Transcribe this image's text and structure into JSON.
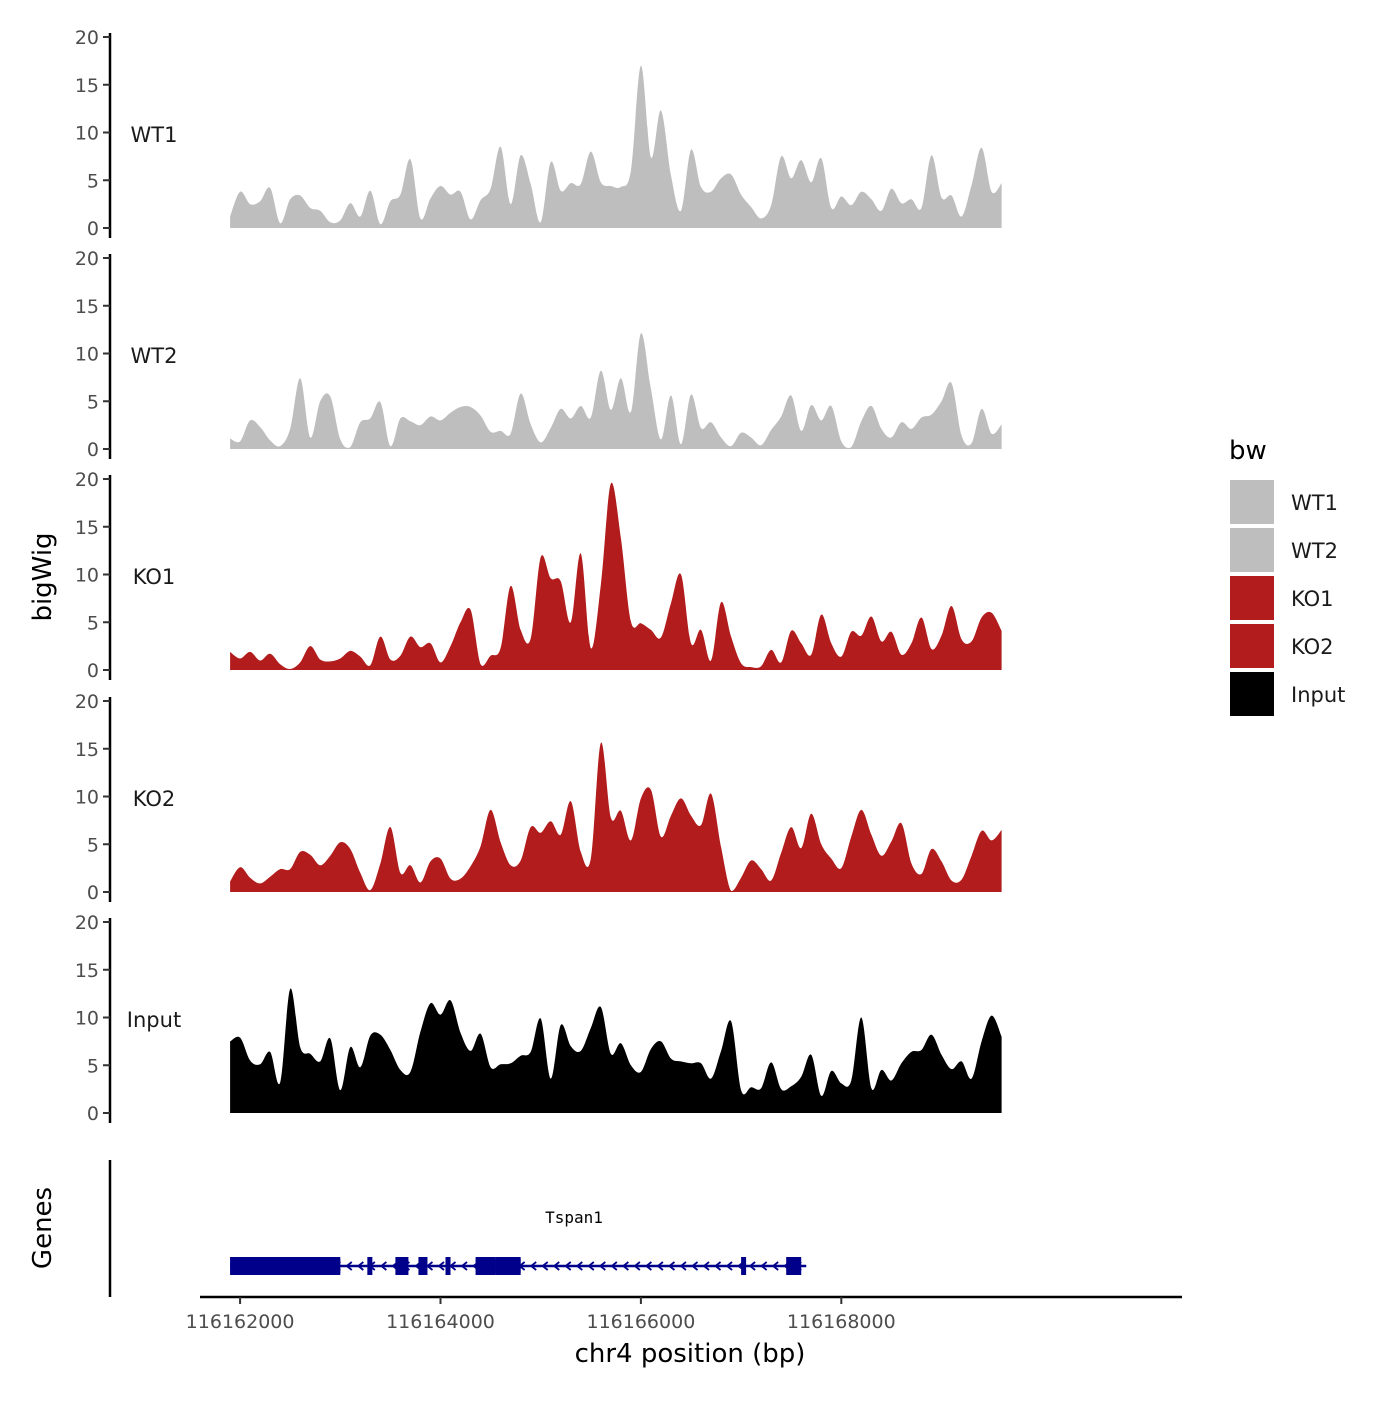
{
  "chart_data": {
    "type": "area",
    "region": "chr4:116161900-116169600",
    "xlabel": "chr4 position (bp)",
    "ylabel": "bigWig",
    "gene_panel_label": "Genes",
    "xlim": [
      116161600,
      116171400
    ],
    "x_ticks": [
      116162000,
      116164000,
      116166000,
      116168000
    ],
    "x_tick_labels": [
      "116162000",
      "116164000",
      "116166000",
      "116168000"
    ],
    "ylim": [
      0,
      20
    ],
    "y_ticks": [
      0,
      5,
      10,
      15,
      20
    ],
    "y_tick_labels": [
      "0",
      "5",
      "10",
      "15",
      "20"
    ],
    "legend": {
      "title": "bw",
      "position": "right",
      "entries": [
        {
          "label": "WT1",
          "color": "#bebebe"
        },
        {
          "label": "WT2",
          "color": "#bebebe"
        },
        {
          "label": "KO1",
          "color": "#b21c1c"
        },
        {
          "label": "KO2",
          "color": "#b21c1c"
        },
        {
          "label": "Input",
          "color": "#000000"
        }
      ]
    },
    "x": [
      116161900,
      116162000,
      116162100,
      116162200,
      116162300,
      116162400,
      116162500,
      116162600,
      116162700,
      116162800,
      116162900,
      116163000,
      116163100,
      116163200,
      116163300,
      116163400,
      116163500,
      116163600,
      116163700,
      116163800,
      116163900,
      116164000,
      116164100,
      116164200,
      116164300,
      116164400,
      116164500,
      116164600,
      116164700,
      116164800,
      116164900,
      116165000,
      116165100,
      116165200,
      116165300,
      116165400,
      116165500,
      116165600,
      116165700,
      116165800,
      116165900,
      116166000,
      116166100,
      116166200,
      116166300,
      116166400,
      116166500,
      116166600,
      116166700,
      116166800,
      116166900,
      116167000,
      116167100,
      116167200,
      116167300,
      116167400,
      116167500,
      116167600,
      116167700,
      116167800,
      116167900,
      116168000,
      116168100,
      116168200,
      116168300,
      116168400,
      116168500,
      116168600,
      116168700,
      116168800,
      116168900,
      116169000,
      116169100,
      116169200,
      116169300,
      116169400,
      116169500,
      116169600
    ],
    "series": [
      {
        "name": "WT1",
        "color": "#bebebe",
        "values": [
          1.2,
          3.8,
          2.5,
          2.8,
          4.2,
          0.5,
          3.0,
          3.4,
          2.1,
          1.8,
          0.6,
          0.8,
          2.6,
          1.2,
          3.9,
          0.4,
          2.8,
          3.5,
          7.2,
          1.0,
          3.1,
          4.4,
          3.5,
          3.8,
          0.9,
          2.9,
          4.1,
          8.5,
          2.5,
          7.6,
          4.6,
          0.6,
          6.9,
          3.9,
          4.7,
          4.6,
          8.0,
          4.8,
          4.4,
          4.3,
          6.0,
          17.0,
          7.4,
          12.3,
          5.5,
          1.8,
          8.2,
          4.3,
          3.8,
          5.2,
          5.6,
          3.5,
          2.2,
          1.0,
          2.4,
          7.5,
          5.2,
          7.1,
          4.8,
          7.3,
          2.1,
          3.3,
          2.4,
          3.8,
          3.0,
          1.8,
          4.1,
          2.6,
          3.0,
          2.1,
          7.6,
          3.2,
          3.4,
          1.2,
          4.5,
          8.4,
          3.8,
          4.7
        ]
      },
      {
        "name": "WT2",
        "color": "#bebebe",
        "values": [
          1.1,
          0.8,
          3.0,
          2.3,
          0.9,
          0.3,
          2.1,
          7.4,
          1.2,
          5.0,
          5.5,
          1.0,
          0.2,
          2.8,
          3.2,
          4.9,
          0.3,
          3.2,
          2.9,
          2.5,
          3.4,
          3.0,
          3.8,
          4.4,
          4.4,
          3.5,
          1.8,
          1.9,
          1.6,
          5.8,
          2.6,
          0.7,
          2.2,
          4.2,
          3.2,
          4.5,
          3.3,
          8.2,
          4.1,
          7.4,
          3.9,
          12.1,
          6.3,
          1.0,
          5.6,
          0.5,
          5.7,
          2.2,
          2.8,
          1.2,
          0.3,
          1.7,
          1.2,
          0.4,
          2.0,
          3.4,
          5.6,
          1.9,
          4.6,
          3.0,
          4.5,
          0.8,
          0.2,
          2.9,
          4.5,
          2.1,
          1.2,
          2.8,
          2.1,
          3.3,
          3.6,
          5.0,
          6.9,
          1.4,
          0.6,
          4.2,
          1.6,
          2.6
        ]
      },
      {
        "name": "KO1",
        "color": "#b21c1c",
        "values": [
          1.9,
          1.2,
          1.9,
          1.0,
          1.7,
          0.6,
          0.1,
          0.8,
          2.5,
          1.1,
          0.9,
          1.2,
          2.0,
          1.4,
          0.5,
          3.5,
          1.1,
          1.5,
          3.5,
          2.4,
          2.8,
          0.8,
          2.5,
          5.0,
          6.3,
          0.6,
          1.5,
          2.3,
          8.8,
          4.2,
          3.3,
          11.8,
          9.6,
          9.3,
          5.0,
          12.2,
          2.3,
          8.9,
          19.5,
          13.8,
          5.1,
          4.9,
          4.2,
          3.4,
          7.0,
          10.0,
          2.8,
          4.2,
          1.0,
          7.1,
          3.5,
          0.7,
          0.3,
          0.4,
          2.1,
          0.8,
          4.1,
          2.8,
          1.6,
          5.8,
          2.8,
          1.4,
          4.0,
          3.6,
          5.6,
          3.0,
          4.0,
          1.6,
          2.8,
          5.5,
          2.2,
          3.6,
          6.7,
          3.2,
          3.0,
          5.5,
          6.0,
          4.1
        ]
      },
      {
        "name": "KO2",
        "color": "#b21c1c",
        "values": [
          1.1,
          2.6,
          1.5,
          0.9,
          1.6,
          2.4,
          2.4,
          4.2,
          3.9,
          2.8,
          3.8,
          5.2,
          4.5,
          2.0,
          0.2,
          3.0,
          6.8,
          2.0,
          2.8,
          1.0,
          3.2,
          3.5,
          1.4,
          1.4,
          2.7,
          4.8,
          8.6,
          5.2,
          2.8,
          3.3,
          6.8,
          6.2,
          7.4,
          6.0,
          9.5,
          4.2,
          3.5,
          15.6,
          7.8,
          8.5,
          5.4,
          9.8,
          10.7,
          5.8,
          8.0,
          9.8,
          8.0,
          7.0,
          10.3,
          4.7,
          0.1,
          1.5,
          3.3,
          2.4,
          1.2,
          4.1,
          6.8,
          4.6,
          8.2,
          5.0,
          3.5,
          2.5,
          5.8,
          8.6,
          6.0,
          3.8,
          5.3,
          7.2,
          3.0,
          1.9,
          4.5,
          3.2,
          1.2,
          1.3,
          3.8,
          6.4,
          5.4,
          6.5
        ]
      },
      {
        "name": "Input",
        "color": "#000000",
        "values": [
          7.5,
          7.9,
          5.5,
          5.1,
          6.4,
          3.2,
          13.0,
          6.9,
          6.2,
          5.4,
          7.8,
          2.4,
          6.9,
          4.8,
          8.1,
          8.2,
          6.6,
          4.5,
          4.3,
          8.5,
          11.5,
          10.3,
          11.8,
          8.4,
          6.5,
          8.3,
          4.8,
          5.1,
          5.2,
          6.0,
          6.4,
          9.9,
          3.6,
          9.2,
          7.0,
          6.5,
          8.9,
          11.1,
          6.2,
          7.3,
          5.0,
          4.3,
          6.7,
          7.5,
          5.7,
          5.4,
          5.2,
          5.2,
          3.6,
          6.5,
          9.6,
          2.4,
          2.7,
          2.6,
          5.3,
          2.5,
          2.8,
          3.8,
          6.1,
          1.8,
          4.4,
          3.1,
          3.4,
          10.0,
          2.6,
          4.5,
          3.4,
          5.2,
          6.4,
          6.6,
          8.2,
          6.1,
          4.6,
          5.4,
          3.6,
          7.5,
          10.2,
          8.0
        ]
      }
    ],
    "gene": {
      "name": "Tspan1",
      "color": "#00008b",
      "strand": "-",
      "start": 116161900,
      "end": 116167600,
      "exons": [
        [
          116161900,
          116163000
        ],
        [
          116163270,
          116163320
        ],
        [
          116163550,
          116163680
        ],
        [
          116163780,
          116163870
        ],
        [
          116164050,
          116164100
        ],
        [
          116164350,
          116164550
        ],
        [
          116164550,
          116164800
        ],
        [
          116167000,
          116167050
        ],
        [
          116167450,
          116167600
        ]
      ],
      "utr": [
        [
          116162720,
          116163000
        ],
        [
          116164550,
          116164800
        ]
      ]
    }
  }
}
